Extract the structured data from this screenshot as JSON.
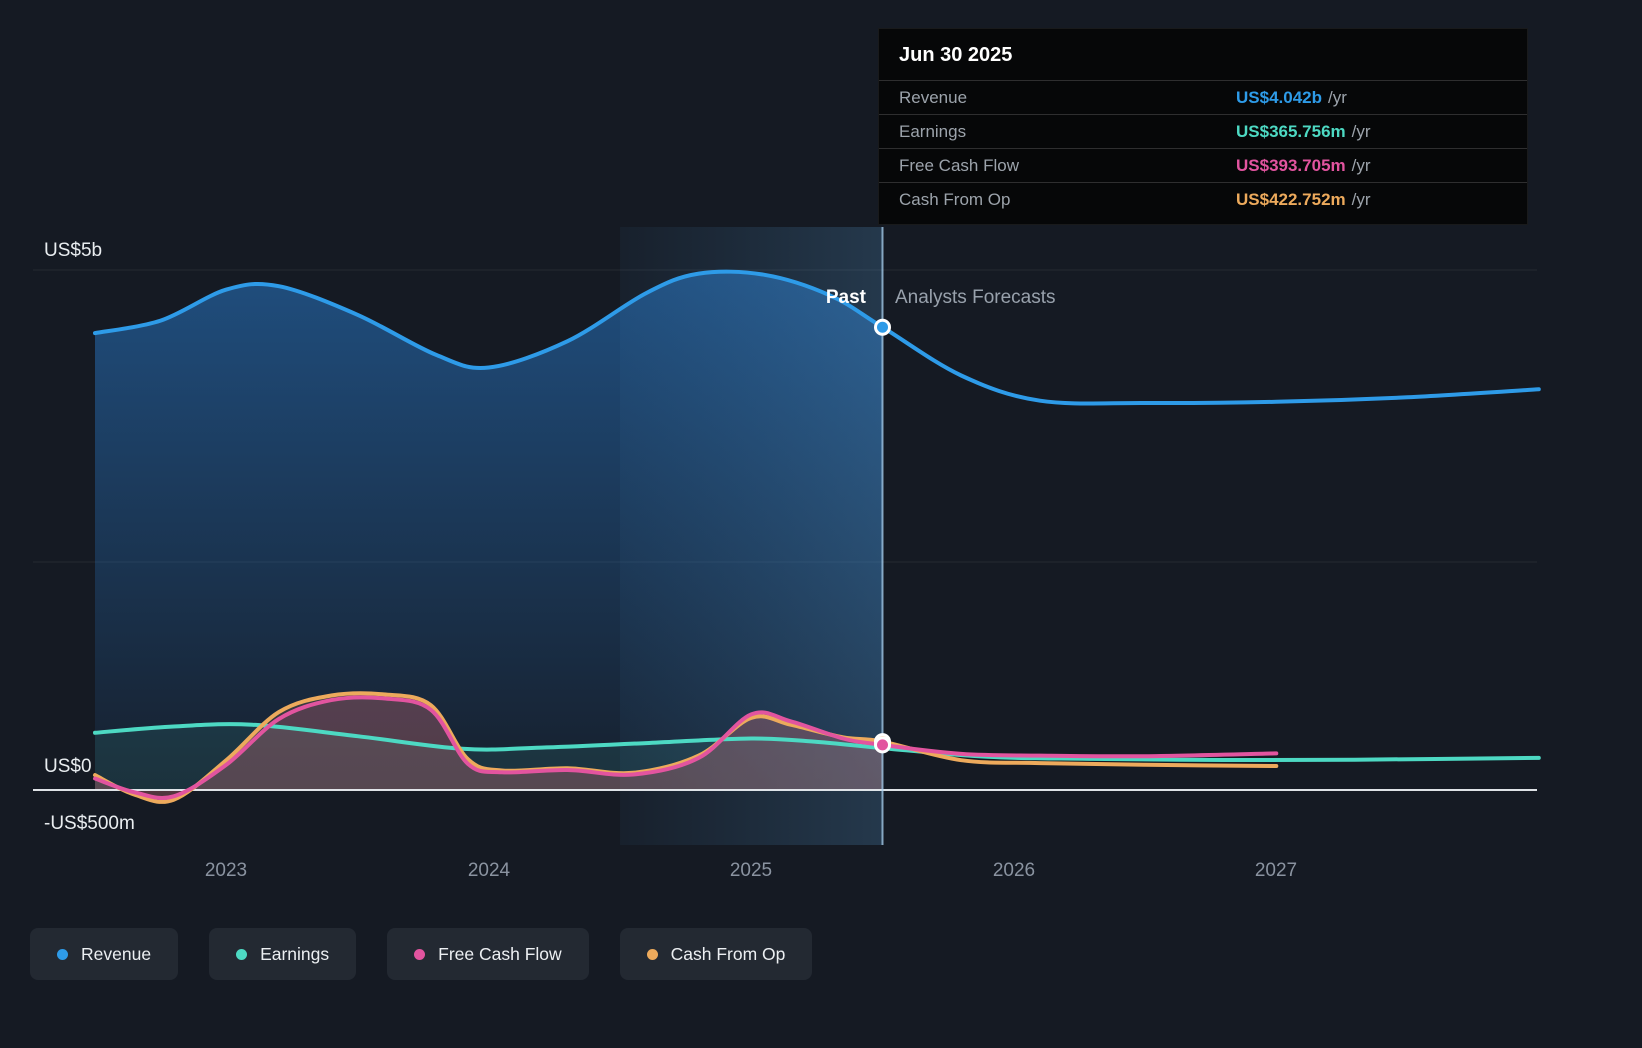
{
  "tooltip": {
    "date": "Jun 30 2025",
    "rows": [
      {
        "label": "Revenue",
        "value": "US$4.042b",
        "suffix": "/yr",
        "color": "#2E9BE8"
      },
      {
        "label": "Earnings",
        "value": "US$365.756m",
        "suffix": "/yr",
        "color": "#4DD9C3"
      },
      {
        "label": "Free Cash Flow",
        "value": "US$393.705m",
        "suffix": "/yr",
        "color": "#E2549F"
      },
      {
        "label": "Cash From Op",
        "value": "US$422.752m",
        "suffix": "/yr",
        "color": "#EDAA5C"
      }
    ]
  },
  "dividers": {
    "past_label": "Past",
    "forecast_label": "Analysts Forecasts"
  },
  "y_axis": {
    "labels": [
      "US$5b",
      "US$0",
      "-US$500m"
    ]
  },
  "x_axis": {
    "labels": [
      "2023",
      "2024",
      "2025",
      "2026",
      "2027"
    ]
  },
  "legend": {
    "items": [
      {
        "label": "Revenue",
        "color": "#2E9BE8"
      },
      {
        "label": "Earnings",
        "color": "#4DD9C3"
      },
      {
        "label": "Free Cash Flow",
        "color": "#E2549F"
      },
      {
        "label": "Cash From Op",
        "color": "#EDAA5C"
      }
    ]
  },
  "chart_data": {
    "type": "area",
    "x_unit": "year",
    "value_unit": "US$ billions per year",
    "xlim": [
      2022.5,
      2028.0
    ],
    "ylim_billions": [
      -0.5,
      5.0
    ],
    "grid": "horizontal",
    "divider_x": 2025.5,
    "divider_date": "Jun 30 2025",
    "highlight_band": [
      2024.5,
      2025.5
    ],
    "x_ticks": [
      2023,
      2024,
      2025,
      2026,
      2027
    ],
    "y_tick_labels": [
      "US$5b",
      "US$0",
      "-US$500m"
    ],
    "series": [
      {
        "name": "Revenue",
        "color": "#2E9BE8",
        "marker": true,
        "fill": "gradient",
        "value_at_divider": 4.042,
        "points": [
          [
            2022.5,
            3.99
          ],
          [
            2022.75,
            4.1
          ],
          [
            2023.0,
            4.37
          ],
          [
            2023.2,
            4.4
          ],
          [
            2023.5,
            4.15
          ],
          [
            2023.8,
            3.8
          ],
          [
            2024.0,
            3.69
          ],
          [
            2024.3,
            3.92
          ],
          [
            2024.6,
            4.34
          ],
          [
            2024.8,
            4.51
          ],
          [
            2025.05,
            4.5
          ],
          [
            2025.3,
            4.32
          ],
          [
            2025.5,
            4.042
          ],
          [
            2025.8,
            3.62
          ],
          [
            2026.1,
            3.4
          ],
          [
            2026.5,
            3.38
          ],
          [
            2027.0,
            3.39
          ],
          [
            2027.5,
            3.43
          ],
          [
            2028.0,
            3.5
          ]
        ]
      },
      {
        "name": "Earnings",
        "color": "#4DD9C3",
        "marker": false,
        "fill": 0.1,
        "value_at_divider": 0.365756,
        "points": [
          [
            2022.5,
            0.5
          ],
          [
            2022.8,
            0.555
          ],
          [
            2023.1,
            0.57
          ],
          [
            2023.5,
            0.47
          ],
          [
            2023.9,
            0.36
          ],
          [
            2024.2,
            0.37
          ],
          [
            2024.6,
            0.41
          ],
          [
            2025.0,
            0.45
          ],
          [
            2025.25,
            0.42
          ],
          [
            2025.5,
            0.3658
          ],
          [
            2025.9,
            0.29
          ],
          [
            2026.3,
            0.272
          ],
          [
            2026.8,
            0.262
          ],
          [
            2027.3,
            0.265
          ],
          [
            2028.0,
            0.28
          ]
        ]
      },
      {
        "name": "Cash From Op",
        "color": "#EDAA5C",
        "marker": true,
        "fill": 0.16,
        "value_at_divider": 0.422752,
        "points": [
          [
            2022.5,
            0.13
          ],
          [
            2022.65,
            -0.04
          ],
          [
            2022.8,
            -0.085
          ],
          [
            2023.0,
            0.26
          ],
          [
            2023.2,
            0.68
          ],
          [
            2023.4,
            0.825
          ],
          [
            2023.6,
            0.835
          ],
          [
            2023.78,
            0.74
          ],
          [
            2023.92,
            0.27
          ],
          [
            2024.05,
            0.17
          ],
          [
            2024.3,
            0.19
          ],
          [
            2024.55,
            0.15
          ],
          [
            2024.8,
            0.3
          ],
          [
            2025.0,
            0.63
          ],
          [
            2025.15,
            0.57
          ],
          [
            2025.35,
            0.46
          ],
          [
            2025.5,
            0.4228
          ],
          [
            2025.8,
            0.26
          ],
          [
            2026.1,
            0.235
          ],
          [
            2026.5,
            0.22
          ],
          [
            2027.0,
            0.21
          ]
        ]
      },
      {
        "name": "Free Cash Flow",
        "color": "#E2549F",
        "marker": true,
        "fill": 0.16,
        "value_at_divider": 0.393705,
        "points": [
          [
            2022.5,
            0.1
          ],
          [
            2022.65,
            -0.02
          ],
          [
            2022.8,
            -0.055
          ],
          [
            2023.0,
            0.22
          ],
          [
            2023.2,
            0.62
          ],
          [
            2023.4,
            0.785
          ],
          [
            2023.6,
            0.8
          ],
          [
            2023.78,
            0.7
          ],
          [
            2023.92,
            0.23
          ],
          [
            2024.05,
            0.155
          ],
          [
            2024.3,
            0.175
          ],
          [
            2024.55,
            0.135
          ],
          [
            2024.8,
            0.28
          ],
          [
            2025.0,
            0.66
          ],
          [
            2025.15,
            0.6
          ],
          [
            2025.35,
            0.45
          ],
          [
            2025.5,
            0.3937
          ],
          [
            2025.8,
            0.315
          ],
          [
            2026.1,
            0.3
          ],
          [
            2026.5,
            0.295
          ],
          [
            2027.0,
            0.32
          ]
        ]
      }
    ]
  }
}
